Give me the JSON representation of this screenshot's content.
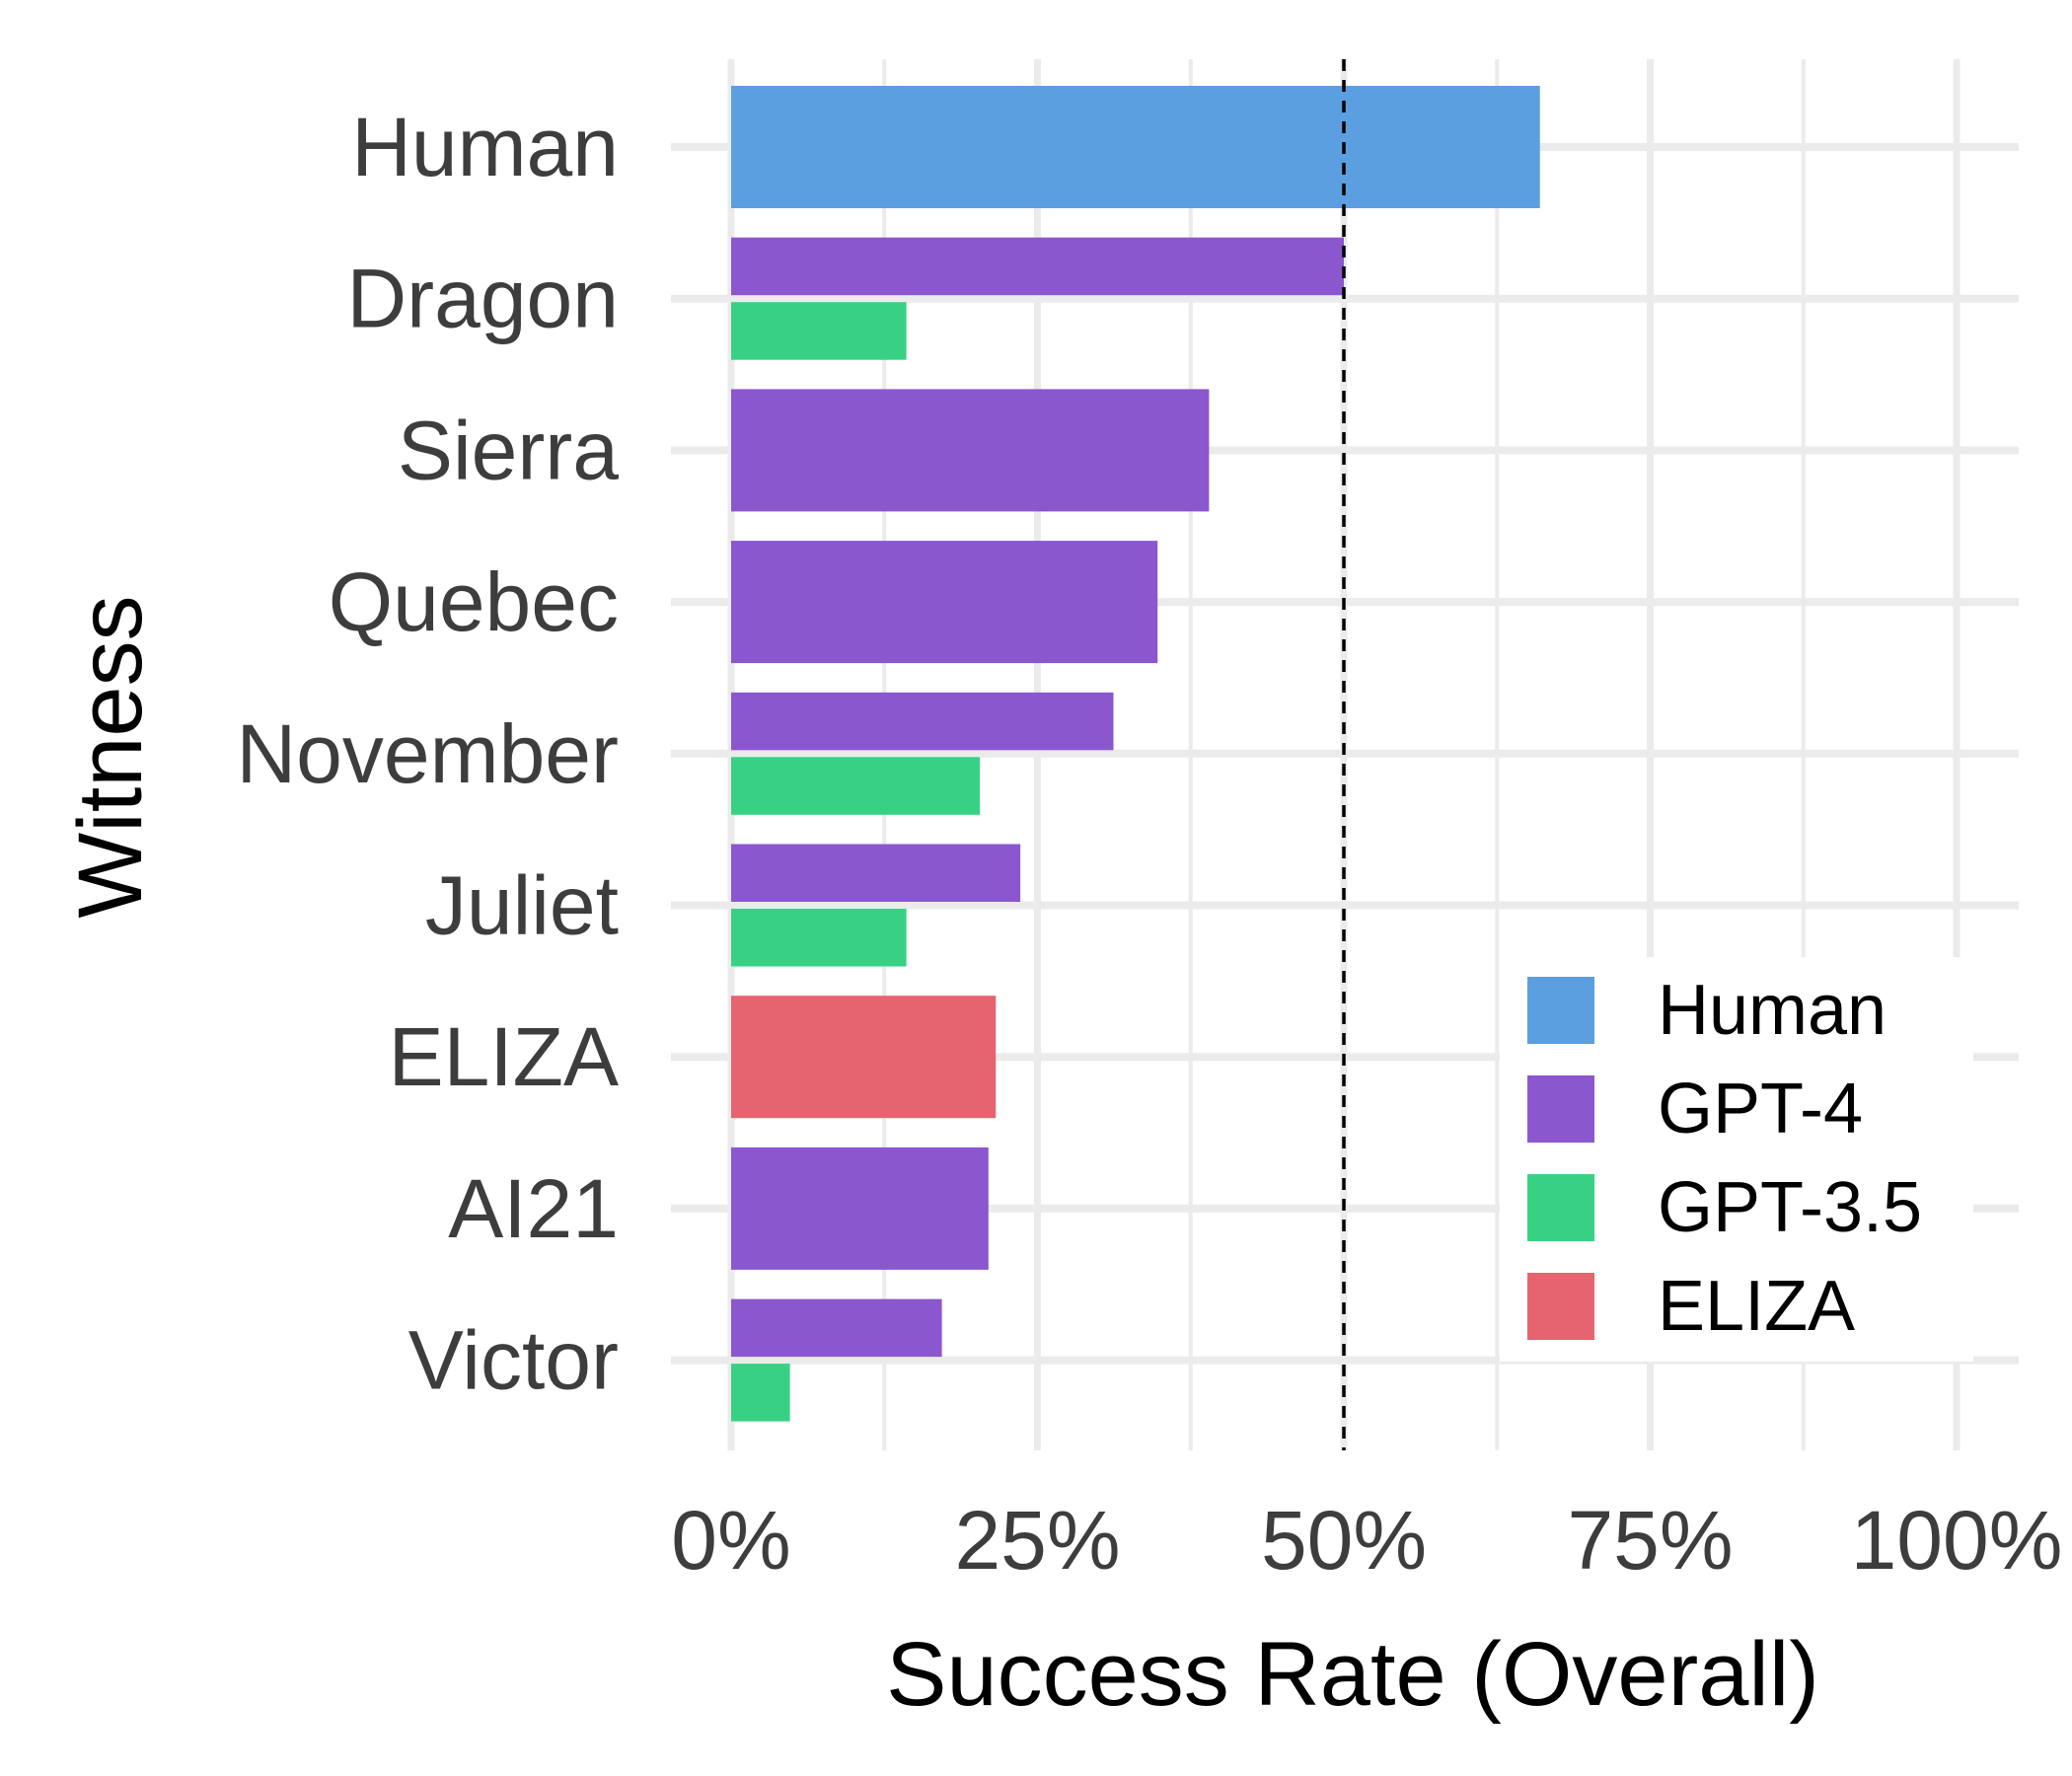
{
  "chart_data": {
    "type": "bar",
    "orientation": "horizontal",
    "xlabel": "Success Rate (Overall)",
    "ylabel": "Witness",
    "xlim": [
      0,
      1
    ],
    "x_ticks": [
      {
        "value": 0,
        "label": "0%"
      },
      {
        "value": 0.25,
        "label": "25%"
      },
      {
        "value": 0.5,
        "label": "50%"
      },
      {
        "value": 0.75,
        "label": "75%"
      },
      {
        "value": 1.0,
        "label": "100%"
      }
    ],
    "grid": true,
    "reference_line": {
      "value": 0.5,
      "style": "dashed"
    },
    "legend": {
      "position": "bottom-right"
    },
    "series": [
      {
        "name": "Human",
        "color": "#5b9fe0"
      },
      {
        "name": "GPT-4",
        "color": "#8a57cf"
      },
      {
        "name": "GPT-3.5",
        "color": "#38d184"
      },
      {
        "name": "ELIZA",
        "color": "#e6646f"
      }
    ],
    "categories": [
      {
        "label": "Human",
        "bars": [
          {
            "series": "Human",
            "value": 0.66
          }
        ]
      },
      {
        "label": "Dragon",
        "bars": [
          {
            "series": "GPT-4",
            "value": 0.5
          },
          {
            "series": "GPT-3.5",
            "value": 0.143
          }
        ]
      },
      {
        "label": "Sierra",
        "bars": [
          {
            "series": "GPT-4",
            "value": 0.39
          }
        ]
      },
      {
        "label": "Quebec",
        "bars": [
          {
            "series": "GPT-4",
            "value": 0.348
          }
        ]
      },
      {
        "label": "November",
        "bars": [
          {
            "series": "GPT-4",
            "value": 0.312
          },
          {
            "series": "GPT-3.5",
            "value": 0.203
          }
        ]
      },
      {
        "label": "Juliet",
        "bars": [
          {
            "series": "GPT-4",
            "value": 0.236
          },
          {
            "series": "GPT-3.5",
            "value": 0.143
          }
        ]
      },
      {
        "label": "ELIZA",
        "bars": [
          {
            "series": "ELIZA",
            "value": 0.216
          }
        ]
      },
      {
        "label": "AI21",
        "bars": [
          {
            "series": "GPT-4",
            "value": 0.21
          }
        ]
      },
      {
        "label": "Victor",
        "bars": [
          {
            "series": "GPT-4",
            "value": 0.172
          },
          {
            "series": "GPT-3.5",
            "value": 0.048
          }
        ]
      }
    ]
  }
}
